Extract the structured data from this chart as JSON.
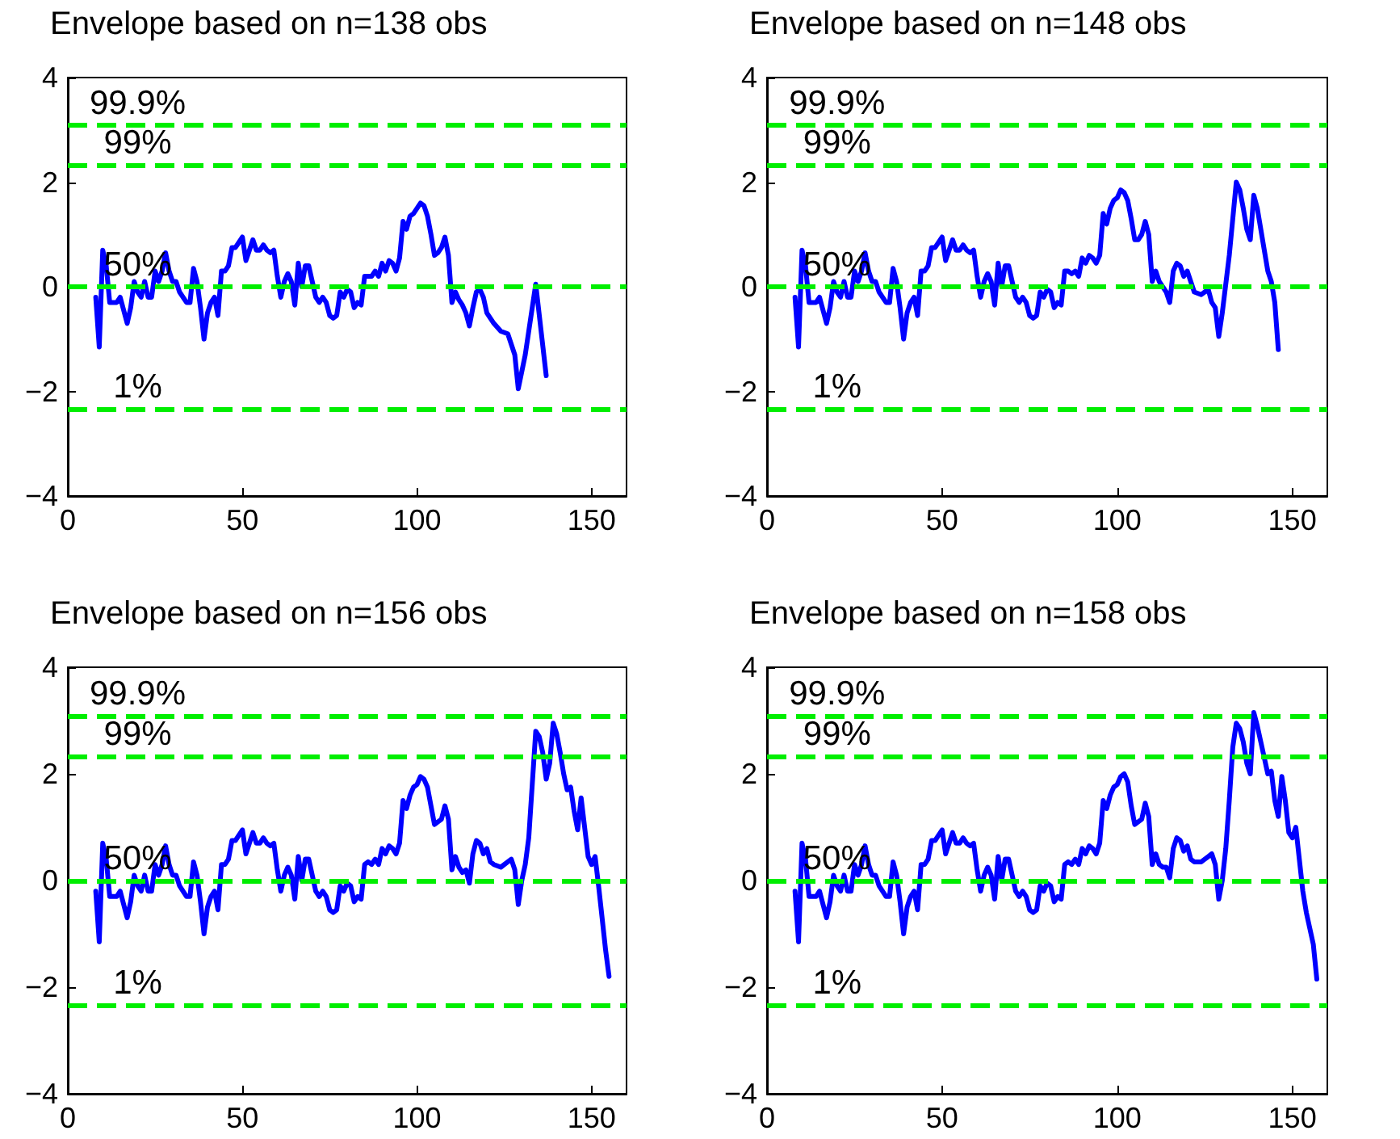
{
  "chart_data": [
    {
      "type": "line",
      "title": "Envelope based on n=138 obs",
      "xlim": [
        0,
        160
      ],
      "xticks": [
        0,
        50,
        100,
        150
      ],
      "ylim": [
        -4,
        4
      ],
      "yticks": [
        -4,
        -2,
        0,
        2,
        4
      ],
      "line_style": "solid",
      "ref_lines": [
        {
          "axis": "y",
          "value": 3.09,
          "color": "#00ee00",
          "line_style": "dashed"
        },
        {
          "axis": "y",
          "value": 2.33,
          "color": "#00ee00",
          "line_style": "dashed"
        },
        {
          "axis": "y",
          "value": 0,
          "color": "#00ee00",
          "line_style": "dashed"
        },
        {
          "axis": "y",
          "value": -2.33,
          "color": "#00ee00",
          "line_style": "dashed"
        }
      ],
      "annotations": [
        "99.9%",
        "99%",
        "50%",
        "1%"
      ],
      "series": [
        {
          "color": "#0000ff",
          "x": [
            8,
            9,
            10,
            11,
            12,
            14,
            15,
            17,
            18,
            19,
            20,
            21,
            22,
            23,
            24,
            25,
            26,
            27,
            28,
            29,
            30,
            31,
            32,
            34,
            35,
            36,
            37,
            38,
            39,
            40,
            41,
            42,
            43,
            44,
            45,
            46,
            47,
            48,
            49,
            50,
            51,
            52,
            53,
            54,
            55,
            56,
            57,
            58,
            59,
            60,
            61,
            62,
            63,
            64,
            65,
            66,
            67,
            68,
            69,
            70,
            71,
            72,
            73,
            74,
            75,
            76,
            77,
            78,
            79,
            80,
            81,
            82,
            83,
            84,
            85,
            86,
            87,
            88,
            89,
            90,
            91,
            92,
            93,
            94,
            95,
            96,
            97,
            98,
            99,
            100,
            101,
            102,
            103,
            104,
            105,
            106,
            107,
            108,
            109,
            110,
            111,
            112,
            113,
            114,
            115,
            116,
            117,
            118,
            119,
            120,
            122,
            124,
            126,
            128,
            129,
            131,
            134,
            137
          ],
          "values": [
            -0.2,
            -1.15,
            0.7,
            0.4,
            -0.3,
            -0.3,
            -0.2,
            -0.7,
            -0.4,
            0.1,
            -0.1,
            -0.2,
            0.1,
            -0.2,
            -0.2,
            0.3,
            0.1,
            0.3,
            0.65,
            0.3,
            0.1,
            0.1,
            -0.1,
            -0.3,
            -0.3,
            0.35,
            0.1,
            -0.4,
            -1.0,
            -0.5,
            -0.3,
            -0.2,
            -0.55,
            0.3,
            0.3,
            0.4,
            0.75,
            0.75,
            0.85,
            0.95,
            0.5,
            0.7,
            0.9,
            0.7,
            0.7,
            0.8,
            0.7,
            0.65,
            0.7,
            0.2,
            -0.2,
            0.1,
            0.25,
            0.1,
            -0.35,
            0.45,
            0.0,
            0.4,
            0.4,
            0.1,
            -0.2,
            -0.3,
            -0.2,
            -0.3,
            -0.55,
            -0.6,
            -0.55,
            -0.1,
            -0.2,
            -0.05,
            -0.1,
            -0.4,
            -0.3,
            -0.35,
            0.2,
            0.2,
            0.2,
            0.3,
            0.2,
            0.45,
            0.3,
            0.5,
            0.45,
            0.3,
            0.55,
            1.25,
            1.1,
            1.35,
            1.4,
            1.5,
            1.6,
            1.55,
            1.35,
            1.0,
            0.6,
            0.65,
            0.75,
            0.95,
            0.6,
            -0.3,
            -0.1,
            -0.25,
            -0.35,
            -0.5,
            -0.75,
            -0.4,
            -0.1,
            -0.05,
            -0.2,
            -0.5,
            -0.7,
            -0.85,
            -0.9,
            -1.3,
            -1.95,
            -1.3,
            0.05,
            -1.7
          ]
        }
      ]
    },
    {
      "type": "line",
      "title": "Envelope based on n=148 obs",
      "xlim": [
        0,
        160
      ],
      "xticks": [
        0,
        50,
        100,
        150
      ],
      "ylim": [
        -4,
        4
      ],
      "yticks": [
        -4,
        -2,
        0,
        2,
        4
      ],
      "line_style": "solid",
      "ref_lines": [
        {
          "axis": "y",
          "value": 3.09,
          "color": "#00ee00",
          "line_style": "dashed"
        },
        {
          "axis": "y",
          "value": 2.33,
          "color": "#00ee00",
          "line_style": "dashed"
        },
        {
          "axis": "y",
          "value": 0,
          "color": "#00ee00",
          "line_style": "dashed"
        },
        {
          "axis": "y",
          "value": -2.33,
          "color": "#00ee00",
          "line_style": "dashed"
        }
      ],
      "annotations": [
        "99.9%",
        "99%",
        "50%",
        "1%"
      ],
      "series": [
        {
          "color": "#0000ff",
          "x": [
            8,
            9,
            10,
            11,
            12,
            14,
            15,
            17,
            18,
            19,
            20,
            21,
            22,
            23,
            24,
            25,
            26,
            27,
            28,
            29,
            30,
            31,
            32,
            34,
            35,
            36,
            37,
            38,
            39,
            40,
            41,
            42,
            43,
            44,
            45,
            46,
            47,
            48,
            49,
            50,
            51,
            52,
            53,
            54,
            55,
            56,
            57,
            58,
            59,
            60,
            61,
            62,
            63,
            64,
            65,
            66,
            67,
            68,
            69,
            70,
            71,
            72,
            73,
            74,
            75,
            76,
            77,
            78,
            79,
            80,
            81,
            82,
            83,
            84,
            85,
            86,
            87,
            88,
            89,
            90,
            91,
            92,
            93,
            94,
            95,
            96,
            97,
            98,
            99,
            100,
            101,
            102,
            103,
            104,
            105,
            106,
            107,
            108,
            109,
            110,
            111,
            112,
            113,
            114,
            115,
            116,
            117,
            118,
            119,
            120,
            121,
            122,
            124,
            126,
            127,
            128,
            129,
            130,
            132,
            134,
            135,
            136,
            137,
            138,
            139,
            140,
            141,
            142,
            143,
            144,
            145,
            146
          ],
          "values": [
            -0.2,
            -1.15,
            0.7,
            0.4,
            -0.3,
            -0.3,
            -0.2,
            -0.7,
            -0.4,
            0.1,
            -0.1,
            -0.2,
            0.1,
            -0.2,
            -0.2,
            0.3,
            0.1,
            0.3,
            0.65,
            0.3,
            0.1,
            0.1,
            -0.1,
            -0.3,
            -0.3,
            0.35,
            0.1,
            -0.4,
            -1.0,
            -0.5,
            -0.3,
            -0.2,
            -0.55,
            0.3,
            0.3,
            0.4,
            0.75,
            0.75,
            0.85,
            0.95,
            0.5,
            0.7,
            0.9,
            0.7,
            0.7,
            0.8,
            0.7,
            0.65,
            0.7,
            0.2,
            -0.2,
            0.1,
            0.25,
            0.1,
            -0.35,
            0.45,
            0.0,
            0.4,
            0.4,
            0.1,
            -0.2,
            -0.3,
            -0.2,
            -0.3,
            -0.55,
            -0.6,
            -0.55,
            -0.1,
            -0.2,
            -0.05,
            -0.1,
            -0.4,
            -0.3,
            -0.35,
            0.3,
            0.3,
            0.25,
            0.3,
            0.2,
            0.55,
            0.45,
            0.6,
            0.55,
            0.45,
            0.6,
            1.4,
            1.2,
            1.5,
            1.65,
            1.7,
            1.85,
            1.8,
            1.65,
            1.3,
            0.9,
            0.9,
            1.0,
            1.25,
            1.0,
            0.1,
            0.3,
            0.1,
            0.0,
            -0.1,
            -0.3,
            0.3,
            0.45,
            0.4,
            0.2,
            0.3,
            0.1,
            -0.1,
            -0.15,
            -0.05,
            -0.3,
            -0.4,
            -0.95,
            -0.5,
            0.6,
            2.0,
            1.85,
            1.5,
            1.1,
            0.9,
            1.75,
            1.5,
            1.1,
            0.7,
            0.3,
            0.1,
            -0.3,
            -1.2
          ]
        }
      ]
    },
    {
      "type": "line",
      "title": "Envelope based on n=156 obs",
      "xlim": [
        0,
        160
      ],
      "xticks": [
        0,
        50,
        100,
        150
      ],
      "ylim": [
        -4,
        4
      ],
      "yticks": [
        -4,
        -2,
        0,
        2,
        4
      ],
      "line_style": "solid",
      "ref_lines": [
        {
          "axis": "y",
          "value": 3.09,
          "color": "#00ee00",
          "line_style": "dashed"
        },
        {
          "axis": "y",
          "value": 2.33,
          "color": "#00ee00",
          "line_style": "dashed"
        },
        {
          "axis": "y",
          "value": 0,
          "color": "#00ee00",
          "line_style": "dashed"
        },
        {
          "axis": "y",
          "value": -2.33,
          "color": "#00ee00",
          "line_style": "dashed"
        }
      ],
      "annotations": [
        "99.9%",
        "99%",
        "50%",
        "1%"
      ],
      "series": [
        {
          "color": "#0000ff",
          "x": [
            8,
            9,
            10,
            11,
            12,
            14,
            15,
            17,
            18,
            19,
            20,
            21,
            22,
            23,
            24,
            25,
            26,
            27,
            28,
            29,
            30,
            31,
            32,
            34,
            35,
            36,
            37,
            38,
            39,
            40,
            41,
            42,
            43,
            44,
            45,
            46,
            47,
            48,
            49,
            50,
            51,
            52,
            53,
            54,
            55,
            56,
            57,
            58,
            59,
            60,
            61,
            62,
            63,
            64,
            65,
            66,
            67,
            68,
            69,
            70,
            71,
            72,
            73,
            74,
            75,
            76,
            77,
            78,
            79,
            80,
            81,
            82,
            83,
            84,
            85,
            86,
            87,
            88,
            89,
            90,
            91,
            92,
            93,
            94,
            95,
            96,
            97,
            98,
            99,
            100,
            101,
            102,
            103,
            104,
            105,
            106,
            107,
            108,
            109,
            110,
            111,
            112,
            113,
            114,
            115,
            116,
            117,
            118,
            119,
            120,
            121,
            122,
            124,
            126,
            127,
            128,
            129,
            130,
            131,
            132,
            133,
            134,
            135,
            136,
            137,
            138,
            139,
            140,
            141,
            142,
            143,
            144,
            145,
            146,
            147,
            148,
            149,
            150,
            151,
            152,
            153,
            154,
            155
          ],
          "values": [
            -0.2,
            -1.15,
            0.7,
            0.4,
            -0.3,
            -0.3,
            -0.2,
            -0.7,
            -0.4,
            0.1,
            -0.1,
            -0.2,
            0.1,
            -0.2,
            -0.2,
            0.3,
            0.1,
            0.3,
            0.65,
            0.3,
            0.1,
            0.1,
            -0.1,
            -0.3,
            -0.3,
            0.35,
            0.1,
            -0.4,
            -1.0,
            -0.5,
            -0.3,
            -0.2,
            -0.55,
            0.3,
            0.3,
            0.4,
            0.75,
            0.75,
            0.85,
            0.95,
            0.5,
            0.7,
            0.9,
            0.7,
            0.7,
            0.8,
            0.7,
            0.65,
            0.7,
            0.2,
            -0.2,
            0.1,
            0.25,
            0.1,
            -0.35,
            0.45,
            0.0,
            0.4,
            0.4,
            0.1,
            -0.2,
            -0.3,
            -0.2,
            -0.3,
            -0.55,
            -0.6,
            -0.55,
            -0.1,
            -0.2,
            -0.05,
            -0.1,
            -0.4,
            -0.3,
            -0.35,
            0.3,
            0.35,
            0.3,
            0.4,
            0.3,
            0.6,
            0.5,
            0.65,
            0.6,
            0.5,
            0.7,
            1.5,
            1.35,
            1.6,
            1.75,
            1.8,
            1.95,
            1.9,
            1.75,
            1.4,
            1.05,
            1.1,
            1.15,
            1.4,
            1.15,
            0.2,
            0.45,
            0.25,
            0.15,
            0.2,
            -0.05,
            0.5,
            0.75,
            0.7,
            0.5,
            0.6,
            0.35,
            0.3,
            0.25,
            0.35,
            0.4,
            0.2,
            -0.45,
            0.0,
            0.3,
            0.8,
            1.8,
            2.8,
            2.7,
            2.4,
            1.9,
            2.2,
            2.95,
            2.75,
            2.4,
            2.0,
            1.7,
            1.75,
            1.3,
            0.95,
            1.55,
            1.0,
            0.45,
            0.3,
            0.45,
            -0.1,
            -0.7,
            -1.3,
            -1.8
          ]
        }
      ]
    },
    {
      "type": "line",
      "title": "Envelope based on n=158 obs",
      "xlim": [
        0,
        160
      ],
      "xticks": [
        0,
        50,
        100,
        150
      ],
      "ylim": [
        -4,
        4
      ],
      "yticks": [
        -4,
        -2,
        0,
        2,
        4
      ],
      "line_style": "solid",
      "ref_lines": [
        {
          "axis": "y",
          "value": 3.09,
          "color": "#00ee00",
          "line_style": "dashed"
        },
        {
          "axis": "y",
          "value": 2.33,
          "color": "#00ee00",
          "line_style": "dashed"
        },
        {
          "axis": "y",
          "value": 0,
          "color": "#00ee00",
          "line_style": "dashed"
        },
        {
          "axis": "y",
          "value": -2.33,
          "color": "#00ee00",
          "line_style": "dashed"
        }
      ],
      "annotations": [
        "99.9%",
        "99%",
        "50%",
        "1%"
      ],
      "series": [
        {
          "color": "#0000ff",
          "x": [
            8,
            9,
            10,
            11,
            12,
            14,
            15,
            17,
            18,
            19,
            20,
            21,
            22,
            23,
            24,
            25,
            26,
            27,
            28,
            29,
            30,
            31,
            32,
            34,
            35,
            36,
            37,
            38,
            39,
            40,
            41,
            42,
            43,
            44,
            45,
            46,
            47,
            48,
            49,
            50,
            51,
            52,
            53,
            54,
            55,
            56,
            57,
            58,
            59,
            60,
            61,
            62,
            63,
            64,
            65,
            66,
            67,
            68,
            69,
            70,
            71,
            72,
            73,
            74,
            75,
            76,
            77,
            78,
            79,
            80,
            81,
            82,
            83,
            84,
            85,
            86,
            87,
            88,
            89,
            90,
            91,
            92,
            93,
            94,
            95,
            96,
            97,
            98,
            99,
            100,
            101,
            102,
            103,
            104,
            105,
            106,
            107,
            108,
            109,
            110,
            111,
            112,
            113,
            114,
            115,
            116,
            117,
            118,
            119,
            120,
            121,
            122,
            124,
            126,
            127,
            128,
            129,
            130,
            131,
            132,
            133,
            134,
            135,
            136,
            137,
            138,
            139,
            140,
            141,
            142,
            143,
            144,
            145,
            146,
            147,
            148,
            149,
            150,
            151,
            152,
            153,
            154,
            155,
            156,
            157
          ],
          "values": [
            -0.2,
            -1.15,
            0.7,
            0.4,
            -0.3,
            -0.3,
            -0.2,
            -0.7,
            -0.4,
            0.1,
            -0.1,
            -0.2,
            0.1,
            -0.2,
            -0.2,
            0.3,
            0.1,
            0.3,
            0.65,
            0.3,
            0.1,
            0.1,
            -0.1,
            -0.3,
            -0.3,
            0.35,
            0.1,
            -0.4,
            -1.0,
            -0.5,
            -0.3,
            -0.2,
            -0.55,
            0.3,
            0.3,
            0.4,
            0.75,
            0.75,
            0.85,
            0.95,
            0.5,
            0.7,
            0.9,
            0.7,
            0.7,
            0.8,
            0.7,
            0.65,
            0.7,
            0.2,
            -0.2,
            0.1,
            0.25,
            0.1,
            -0.35,
            0.45,
            0.0,
            0.4,
            0.4,
            0.1,
            -0.2,
            -0.3,
            -0.2,
            -0.3,
            -0.55,
            -0.6,
            -0.55,
            -0.1,
            -0.2,
            -0.05,
            -0.1,
            -0.4,
            -0.3,
            -0.35,
            0.3,
            0.35,
            0.3,
            0.4,
            0.3,
            0.6,
            0.5,
            0.65,
            0.6,
            0.5,
            0.7,
            1.5,
            1.35,
            1.6,
            1.75,
            1.8,
            1.95,
            2.0,
            1.85,
            1.4,
            1.05,
            1.1,
            1.15,
            1.45,
            1.2,
            0.3,
            0.5,
            0.3,
            0.25,
            0.25,
            0.05,
            0.6,
            0.8,
            0.75,
            0.55,
            0.65,
            0.4,
            0.35,
            0.35,
            0.45,
            0.5,
            0.3,
            -0.35,
            0.0,
            0.6,
            1.5,
            2.5,
            2.95,
            2.85,
            2.6,
            2.2,
            2.0,
            3.15,
            2.9,
            2.6,
            2.3,
            2.0,
            2.05,
            1.5,
            1.2,
            1.95,
            1.5,
            0.9,
            0.8,
            1.0,
            0.4,
            -0.2,
            -0.6,
            -0.9,
            -1.2,
            -1.85
          ]
        }
      ]
    }
  ]
}
